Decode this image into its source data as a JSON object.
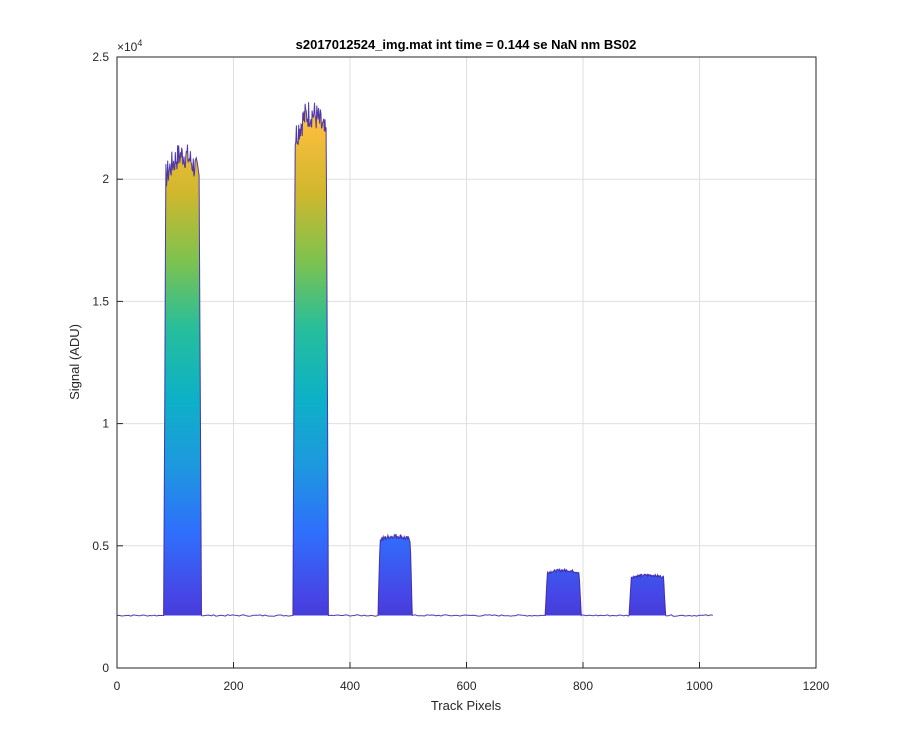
{
  "chart_data": {
    "type": "area",
    "title": "s2017012524_img.mat int time = 0.144 se  NaN nm BS02",
    "xlabel": "Track Pixels",
    "ylabel": "Signal (ADU)",
    "y_exponent_label": "×10",
    "y_exponent_power": "4",
    "xlim": [
      0,
      1200
    ],
    "ylim": [
      0,
      25000
    ],
    "x_ticks": [
      0,
      200,
      400,
      600,
      800,
      1000,
      1200
    ],
    "x_tick_labels": [
      "0",
      "200",
      "400",
      "600",
      "800",
      "1000",
      "1200"
    ],
    "y_ticks": [
      0,
      5000,
      10000,
      15000,
      20000,
      25000
    ],
    "y_tick_labels": [
      "0",
      "0.5",
      "1",
      "1.5",
      "2",
      "2.5"
    ],
    "grid": true,
    "colormap": [
      "#3e26a8",
      "#4743e4",
      "#2f6ffc",
      "#1d99de",
      "#0db1c6",
      "#27be9b",
      "#7ec24e",
      "#d0b82d",
      "#fbbd3c",
      "#f9e026"
    ],
    "baseline": 2150,
    "baseline_x_range": [
      0,
      1024
    ],
    "peaks": [
      {
        "x_start": 80,
        "x_end": 145,
        "peak": 21000
      },
      {
        "x_start": 302,
        "x_end": 363,
        "peak": 22700
      },
      {
        "x_start": 448,
        "x_end": 507,
        "peak": 5400
      },
      {
        "x_start": 735,
        "x_end": 797,
        "peak": 4000
      },
      {
        "x_start": 879,
        "x_end": 942,
        "peak": 3800
      }
    ]
  }
}
